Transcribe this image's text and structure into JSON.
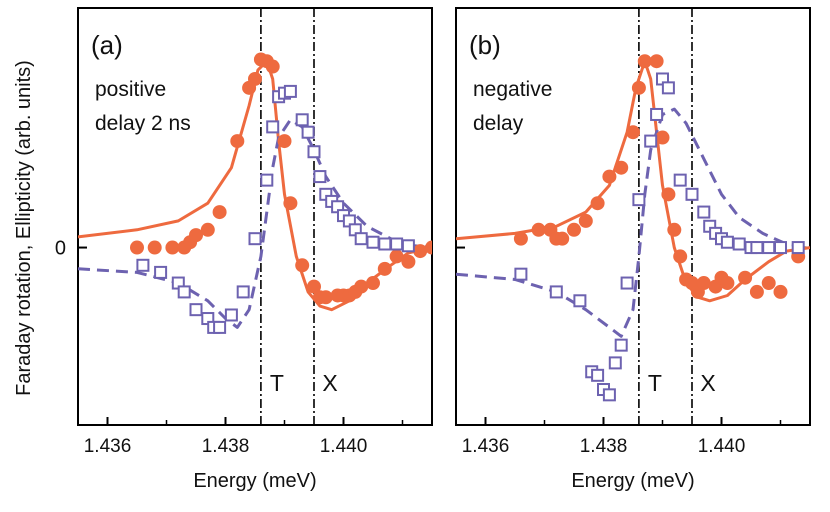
{
  "ylabel": "Faraday rotation, Ellipticity (arb. units)",
  "ytick_zero": "0",
  "colors": {
    "filled": "#ee6a3f",
    "open": "#6d62b0",
    "axis": "#000000"
  },
  "chart_data": [
    {
      "type": "scatter",
      "panel_label": "(a)",
      "annotation": [
        "positive",
        "delay 2 ns"
      ],
      "xlabel": "Energy (meV)",
      "xlim": [
        1.4355,
        1.4415
      ],
      "ylim": [
        -1.0,
        1.35
      ],
      "xticks": [
        {
          "value": 1.436,
          "label": "1.436"
        },
        {
          "value": 1.438,
          "label": "1.438"
        },
        {
          "value": 1.44,
          "label": "1.440"
        }
      ],
      "vlines": [
        {
          "x": 1.4386,
          "label": "T"
        },
        {
          "x": 1.4395,
          "label": "X"
        }
      ],
      "series": [
        {
          "marker": "filled-circle",
          "role": "data",
          "points": [
            [
              1.4365,
              0.0
            ],
            [
              1.4368,
              0.0
            ],
            [
              1.4371,
              0.0
            ],
            [
              1.4373,
              0.0
            ],
            [
              1.4374,
              0.03
            ],
            [
              1.4375,
              0.07
            ],
            [
              1.4377,
              0.1
            ],
            [
              1.4379,
              0.2
            ],
            [
              1.4382,
              0.6
            ],
            [
              1.4384,
              0.9
            ],
            [
              1.4385,
              0.95
            ],
            [
              1.4386,
              1.06
            ],
            [
              1.4387,
              1.05
            ],
            [
              1.4388,
              1.02
            ],
            [
              1.439,
              0.6
            ],
            [
              1.4391,
              0.25
            ],
            [
              1.4393,
              -0.1
            ],
            [
              1.4395,
              -0.22
            ],
            [
              1.4396,
              -0.28
            ],
            [
              1.4397,
              -0.28
            ],
            [
              1.4399,
              -0.27
            ],
            [
              1.44,
              -0.27
            ],
            [
              1.4401,
              -0.27
            ],
            [
              1.4402,
              -0.25
            ],
            [
              1.4403,
              -0.22
            ],
            [
              1.4405,
              -0.2
            ],
            [
              1.4407,
              -0.12
            ],
            [
              1.4409,
              -0.05
            ],
            [
              1.4411,
              -0.08
            ],
            [
              1.4413,
              -0.02
            ],
            [
              1.4415,
              0.0
            ]
          ]
        },
        {
          "marker": "open-square",
          "role": "data",
          "points": [
            [
              1.4366,
              -0.1
            ],
            [
              1.4369,
              -0.14
            ],
            [
              1.4372,
              -0.2
            ],
            [
              1.4373,
              -0.25
            ],
            [
              1.4375,
              -0.35
            ],
            [
              1.4377,
              -0.4
            ],
            [
              1.4378,
              -0.45
            ],
            [
              1.4379,
              -0.45
            ],
            [
              1.4381,
              -0.38
            ],
            [
              1.4383,
              -0.25
            ],
            [
              1.4385,
              0.05
            ],
            [
              1.4387,
              0.38
            ],
            [
              1.4388,
              0.68
            ],
            [
              1.4389,
              0.85
            ],
            [
              1.439,
              0.87
            ],
            [
              1.4391,
              0.88
            ],
            [
              1.4393,
              0.72
            ],
            [
              1.4394,
              0.65
            ],
            [
              1.4395,
              0.54
            ],
            [
              1.4396,
              0.4
            ],
            [
              1.4397,
              0.3
            ],
            [
              1.4398,
              0.26
            ],
            [
              1.4399,
              0.23
            ],
            [
              1.44,
              0.18
            ],
            [
              1.4401,
              0.15
            ],
            [
              1.4402,
              0.1
            ],
            [
              1.4403,
              0.05
            ],
            [
              1.4405,
              0.03
            ],
            [
              1.4407,
              0.02
            ],
            [
              1.4409,
              0.02
            ],
            [
              1.4411,
              0.01
            ]
          ]
        },
        {
          "style": "solid-line",
          "role": "fit",
          "points": [
            [
              1.4355,
              0.06
            ],
            [
              1.4365,
              0.1
            ],
            [
              1.4372,
              0.15
            ],
            [
              1.4377,
              0.25
            ],
            [
              1.4381,
              0.45
            ],
            [
              1.4384,
              0.8
            ],
            [
              1.43855,
              1.0
            ],
            [
              1.4387,
              1.05
            ],
            [
              1.4388,
              0.95
            ],
            [
              1.4389,
              0.6
            ],
            [
              1.439,
              0.3
            ],
            [
              1.4392,
              -0.05
            ],
            [
              1.4394,
              -0.25
            ],
            [
              1.4396,
              -0.33
            ],
            [
              1.4398,
              -0.35
            ],
            [
              1.4401,
              -0.3
            ],
            [
              1.4404,
              -0.2
            ],
            [
              1.4408,
              -0.1
            ],
            [
              1.4411,
              -0.03
            ],
            [
              1.4415,
              0.0
            ]
          ]
        },
        {
          "style": "dashed-line",
          "role": "fit",
          "points": [
            [
              1.4355,
              -0.12
            ],
            [
              1.4365,
              -0.14
            ],
            [
              1.4372,
              -0.2
            ],
            [
              1.4377,
              -0.3
            ],
            [
              1.438,
              -0.4
            ],
            [
              1.4382,
              -0.45
            ],
            [
              1.4384,
              -0.35
            ],
            [
              1.4386,
              -0.05
            ],
            [
              1.4387,
              0.2
            ],
            [
              1.4388,
              0.45
            ],
            [
              1.4389,
              0.62
            ],
            [
              1.4391,
              0.72
            ],
            [
              1.4393,
              0.68
            ],
            [
              1.4395,
              0.55
            ],
            [
              1.4397,
              0.4
            ],
            [
              1.44,
              0.25
            ],
            [
              1.4404,
              0.12
            ],
            [
              1.4408,
              0.05
            ],
            [
              1.4412,
              0.01
            ],
            [
              1.4415,
              0.0
            ]
          ]
        }
      ]
    },
    {
      "type": "scatter",
      "panel_label": "(b)",
      "annotation": [
        "negative",
        "delay"
      ],
      "xlabel": "Energy (meV)",
      "xlim": [
        1.4355,
        1.4415
      ],
      "ylim": [
        -1.0,
        1.35
      ],
      "xticks": [
        {
          "value": 1.436,
          "label": "1.436"
        },
        {
          "value": 1.438,
          "label": "1.438"
        },
        {
          "value": 1.44,
          "label": "1.440"
        }
      ],
      "vlines": [
        {
          "x": 1.4386,
          "label": "T"
        },
        {
          "x": 1.4395,
          "label": "X"
        }
      ],
      "series": [
        {
          "marker": "filled-circle",
          "role": "data",
          "points": [
            [
              1.4366,
              0.05
            ],
            [
              1.4369,
              0.1
            ],
            [
              1.4371,
              0.1
            ],
            [
              1.4372,
              0.05
            ],
            [
              1.4373,
              0.05
            ],
            [
              1.4375,
              0.1
            ],
            [
              1.4377,
              0.15
            ],
            [
              1.4379,
              0.25
            ],
            [
              1.4381,
              0.4
            ],
            [
              1.4383,
              0.45
            ],
            [
              1.4385,
              0.65
            ],
            [
              1.4386,
              0.9
            ],
            [
              1.4387,
              1.05
            ],
            [
              1.4389,
              1.05
            ],
            [
              1.439,
              0.62
            ],
            [
              1.4391,
              0.3
            ],
            [
              1.4392,
              0.1
            ],
            [
              1.4393,
              -0.05
            ],
            [
              1.4394,
              -0.18
            ],
            [
              1.4395,
              -0.2
            ],
            [
              1.4396,
              -0.25
            ],
            [
              1.4397,
              -0.2
            ],
            [
              1.4399,
              -0.22
            ],
            [
              1.44,
              -0.17
            ],
            [
              1.4401,
              -0.2
            ],
            [
              1.4404,
              -0.17
            ],
            [
              1.4406,
              -0.25
            ],
            [
              1.4408,
              -0.2
            ],
            [
              1.441,
              -0.25
            ],
            [
              1.4413,
              -0.05
            ]
          ]
        },
        {
          "marker": "open-square",
          "role": "data",
          "points": [
            [
              1.4366,
              -0.15
            ],
            [
              1.4372,
              -0.25
            ],
            [
              1.4376,
              -0.3
            ],
            [
              1.4378,
              -0.7
            ],
            [
              1.4379,
              -0.72
            ],
            [
              1.438,
              -0.8
            ],
            [
              1.4381,
              -0.83
            ],
            [
              1.4382,
              -0.65
            ],
            [
              1.4383,
              -0.55
            ],
            [
              1.4384,
              -0.2
            ],
            [
              1.4386,
              0.27
            ],
            [
              1.4388,
              0.6
            ],
            [
              1.4389,
              0.75
            ],
            [
              1.439,
              0.95
            ],
            [
              1.4391,
              0.9
            ],
            [
              1.4393,
              0.38
            ],
            [
              1.4395,
              0.3
            ],
            [
              1.4397,
              0.2
            ],
            [
              1.4398,
              0.12
            ],
            [
              1.4399,
              0.08
            ],
            [
              1.44,
              0.05
            ],
            [
              1.4401,
              0.03
            ],
            [
              1.4403,
              0.02
            ],
            [
              1.4405,
              0.0
            ],
            [
              1.4406,
              0.0
            ],
            [
              1.4408,
              0.0
            ],
            [
              1.441,
              0.0
            ],
            [
              1.4413,
              0.0
            ]
          ]
        },
        {
          "style": "solid-line",
          "role": "fit",
          "points": [
            [
              1.4355,
              0.05
            ],
            [
              1.4365,
              0.08
            ],
            [
              1.4372,
              0.12
            ],
            [
              1.4377,
              0.2
            ],
            [
              1.4381,
              0.35
            ],
            [
              1.4384,
              0.65
            ],
            [
              1.43855,
              0.9
            ],
            [
              1.4387,
              1.05
            ],
            [
              1.4388,
              0.95
            ],
            [
              1.4389,
              0.65
            ],
            [
              1.439,
              0.35
            ],
            [
              1.4392,
              0.0
            ],
            [
              1.4394,
              -0.2
            ],
            [
              1.4396,
              -0.28
            ],
            [
              1.4398,
              -0.3
            ],
            [
              1.4401,
              -0.27
            ],
            [
              1.4404,
              -0.18
            ],
            [
              1.4408,
              -0.08
            ],
            [
              1.4411,
              -0.02
            ],
            [
              1.4415,
              0.0
            ]
          ]
        },
        {
          "style": "dashed-line",
          "role": "fit",
          "points": [
            [
              1.4355,
              -0.15
            ],
            [
              1.4365,
              -0.18
            ],
            [
              1.4372,
              -0.25
            ],
            [
              1.4377,
              -0.35
            ],
            [
              1.4381,
              -0.45
            ],
            [
              1.4383,
              -0.5
            ],
            [
              1.4385,
              -0.35
            ],
            [
              1.4386,
              -0.05
            ],
            [
              1.4387,
              0.3
            ],
            [
              1.4388,
              0.55
            ],
            [
              1.439,
              0.75
            ],
            [
              1.4392,
              0.78
            ],
            [
              1.4394,
              0.7
            ],
            [
              1.4397,
              0.5
            ],
            [
              1.44,
              0.3
            ],
            [
              1.4403,
              0.17
            ],
            [
              1.4407,
              0.08
            ],
            [
              1.4411,
              0.02
            ],
            [
              1.4415,
              0.0
            ]
          ]
        }
      ]
    }
  ]
}
